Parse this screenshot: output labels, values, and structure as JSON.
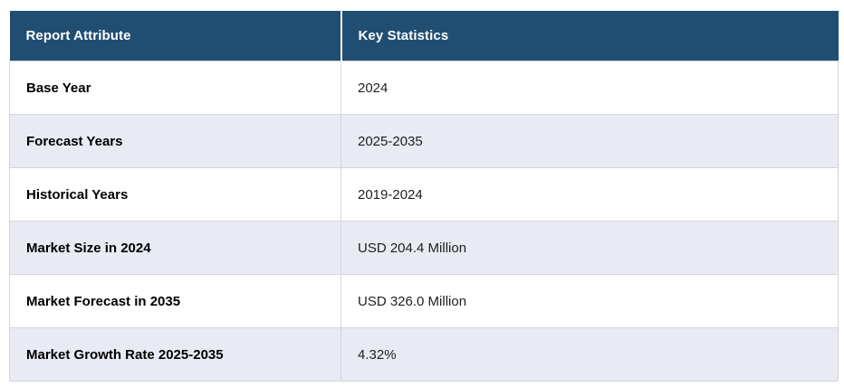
{
  "chart_data": {
    "type": "table",
    "columns": [
      "Report Attribute",
      "Key Statistics"
    ],
    "rows": [
      [
        "Base Year",
        "2024"
      ],
      [
        "Forecast Years",
        "2025-2035"
      ],
      [
        "Historical Years",
        "2019-2024"
      ],
      [
        "Market Size in 2024",
        "USD 204.4 Million"
      ],
      [
        "Market Forecast in 2035",
        "USD 326.0 Million"
      ],
      [
        "Market Growth Rate 2025-2035",
        "4.32%"
      ]
    ]
  },
  "table": {
    "header": {
      "col1": "Report Attribute",
      "col2": "Key Statistics"
    },
    "rows": [
      {
        "attribute": "Base Year",
        "value": "2024"
      },
      {
        "attribute": "Forecast Years",
        "value": "2025-2035"
      },
      {
        "attribute": "Historical Years",
        "value": "2019-2024"
      },
      {
        "attribute": "Market Size in 2024",
        "value": "USD 204.4 Million"
      },
      {
        "attribute": "Market Forecast in 2035",
        "value": "USD 326.0 Million"
      },
      {
        "attribute": "Market Growth Rate 2025-2035",
        "value": "4.32%"
      }
    ]
  },
  "colors": {
    "header_bg": "#204E73",
    "header_text": "#FFFFFF",
    "row_bg": "#FFFFFF",
    "row_alt_bg": "#E8EAF4",
    "border": "#D6D6D6",
    "attribute_text": "#000000",
    "value_text": "#1F1F1F"
  }
}
